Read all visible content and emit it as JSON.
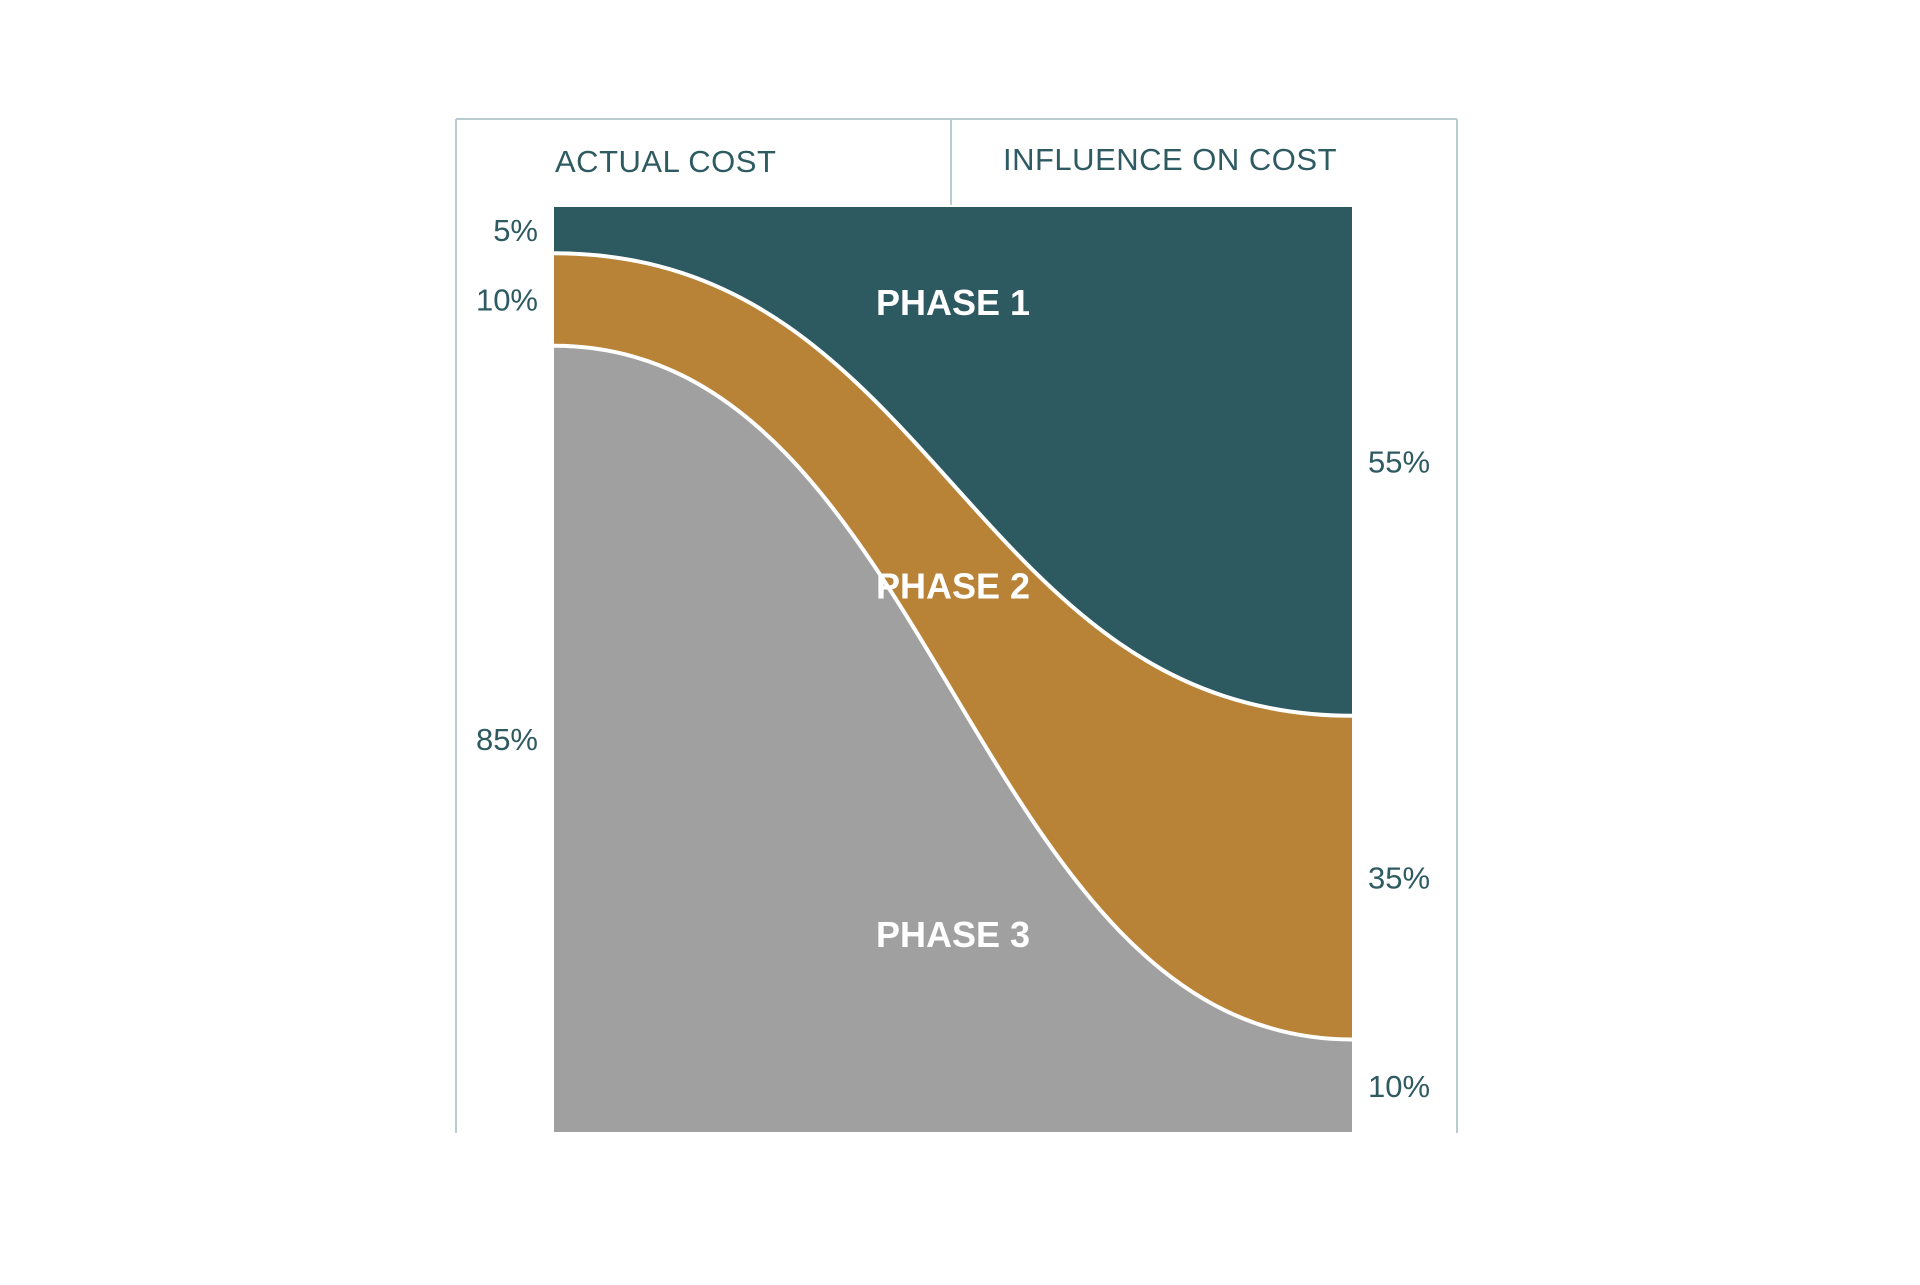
{
  "chart_data": {
    "type": "area",
    "headers": {
      "left": "ACTUAL COST",
      "right": "INFLUENCE ON COST"
    },
    "series": [
      {
        "name": "PHASE 1",
        "actual_cost_pct": 5,
        "influence_on_cost_pct": 55,
        "color": "#2d5961"
      },
      {
        "name": "PHASE 2",
        "actual_cost_pct": 10,
        "influence_on_cost_pct": 35,
        "color": "#b88237"
      },
      {
        "name": "PHASE 3",
        "actual_cost_pct": 85,
        "influence_on_cost_pct": 10,
        "color": "#a0a0a0"
      }
    ],
    "left_labels": [
      "5%",
      "10%",
      "85%"
    ],
    "right_labels": [
      "55%",
      "35%",
      "10%"
    ],
    "ylim": [
      0,
      100
    ],
    "grid": false,
    "legend": "none"
  }
}
